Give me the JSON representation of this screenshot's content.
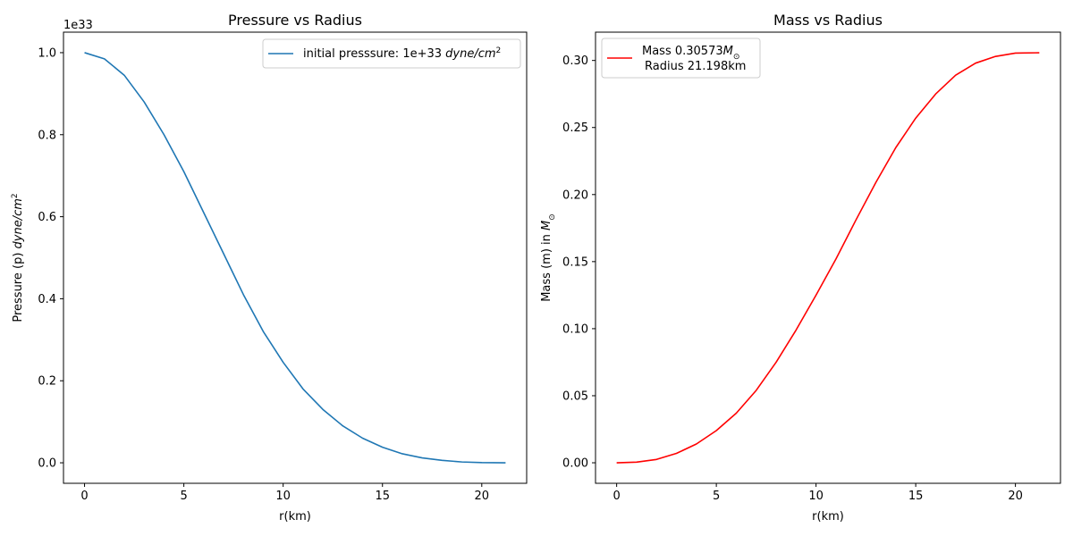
{
  "chart_data": [
    {
      "type": "line",
      "title": "Pressure vs Radius",
      "xlabel": "r(km)",
      "ylabel_parts": [
        "Pressure (p) ",
        "dyne",
        "/",
        "cm",
        "2"
      ],
      "offset_label": "1e33",
      "xlim": [
        -1.06,
        22.26
      ],
      "ylim": [
        -0.05,
        1.05
      ],
      "xticks": [
        0,
        5,
        10,
        15,
        20
      ],
      "yticks": [
        0.0,
        0.2,
        0.4,
        0.6,
        0.8,
        1.0
      ],
      "ytick_labels": [
        "0.0",
        "0.2",
        "0.4",
        "0.6",
        "0.8",
        "1.0"
      ],
      "legend_location": "upper right",
      "series": [
        {
          "name_parts": [
            "initial presssure: 1e+33 ",
            "dyne",
            "/",
            "cm",
            "2"
          ],
          "color": "#1f77b4",
          "x": [
            0,
            1,
            2,
            3,
            4,
            5,
            6,
            7,
            8,
            9,
            10,
            11,
            12,
            13,
            14,
            15,
            16,
            17,
            18,
            19,
            20,
            21.198
          ],
          "y": [
            1.0,
            0.985,
            0.945,
            0.88,
            0.8,
            0.71,
            0.61,
            0.51,
            0.41,
            0.32,
            0.245,
            0.18,
            0.13,
            0.09,
            0.06,
            0.038,
            0.022,
            0.012,
            0.006,
            0.002,
            0.0005,
            0.0
          ]
        }
      ]
    },
    {
      "type": "line",
      "title": "Mass vs Radius",
      "xlabel": "r(km)",
      "ylabel_parts": [
        "Mass (m) in ",
        "M",
        "⊙"
      ],
      "xlim": [
        -1.06,
        22.26
      ],
      "ylim": [
        -0.0153,
        0.3211
      ],
      "xticks": [
        0,
        5,
        10,
        15,
        20
      ],
      "yticks": [
        0.0,
        0.05,
        0.1,
        0.15,
        0.2,
        0.25,
        0.3
      ],
      "ytick_labels": [
        "0.00",
        "0.05",
        "0.10",
        "0.15",
        "0.20",
        "0.25",
        "0.30"
      ],
      "legend_location": "upper left",
      "series": [
        {
          "name_line1_parts": [
            "Mass 0.30573",
            "M",
            "⊙"
          ],
          "name_line2": "Radius 21.198km",
          "color": "#ff0000",
          "x": [
            0,
            1,
            2,
            3,
            4,
            5,
            6,
            7,
            8,
            9,
            10,
            11,
            12,
            13,
            14,
            15,
            16,
            17,
            18,
            19,
            20,
            21,
            21.198
          ],
          "y": [
            0.0,
            0.0005,
            0.0025,
            0.007,
            0.014,
            0.024,
            0.037,
            0.054,
            0.075,
            0.099,
            0.125,
            0.152,
            0.181,
            0.209,
            0.235,
            0.257,
            0.275,
            0.289,
            0.298,
            0.303,
            0.3055,
            0.3057,
            0.30573
          ]
        }
      ]
    }
  ]
}
